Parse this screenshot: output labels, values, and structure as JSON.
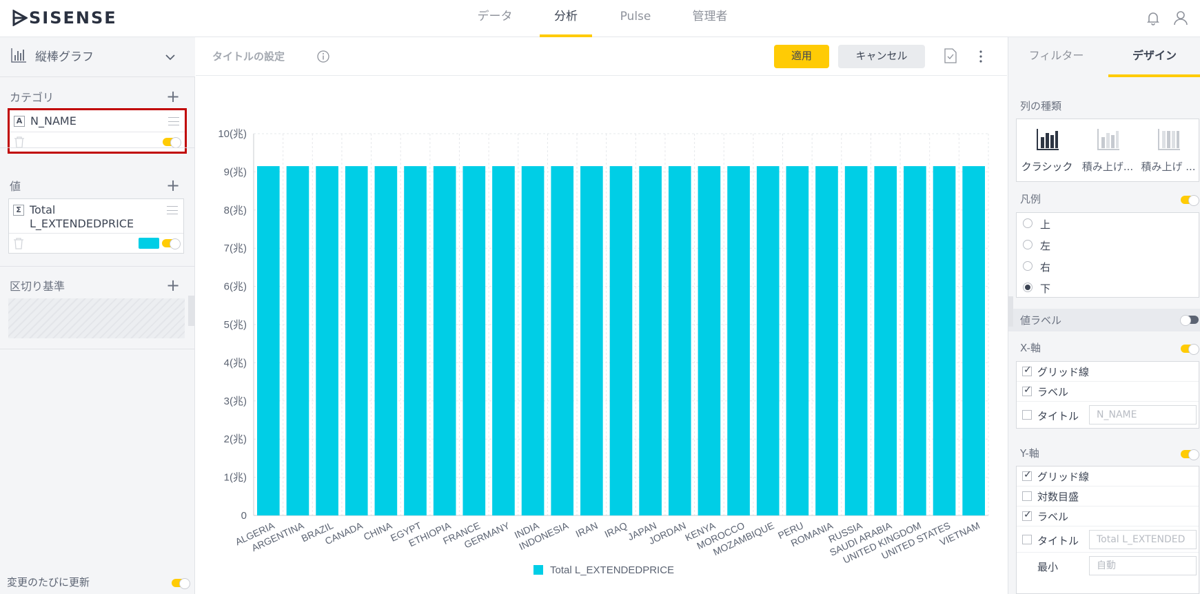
{
  "app": {
    "logo": "SISENSE"
  },
  "nav": {
    "items": [
      "データ",
      "分析",
      "Pulse",
      "管理者"
    ],
    "active": "分析"
  },
  "left": {
    "chart_type": "縦棒グラフ",
    "category_label": "カテゴリ",
    "category_field": "N_NAME",
    "value_label": "値",
    "value_field": "Total L_EXTENDEDPRICE",
    "breakby_label": "区切り基準",
    "update_label": "変更のたびに更新",
    "field_type_a": "A",
    "field_type_sigma": "Σ"
  },
  "center": {
    "title_placeholder": "タイトルの設定",
    "apply_label": "適用",
    "cancel_label": "キャンセル"
  },
  "right": {
    "tabs": [
      "フィルター",
      "デザイン"
    ],
    "active_tab": "デザイン",
    "column_type_label": "列の種類",
    "column_types": [
      "クラシック",
      "積み上げ...",
      "積み上げ ..."
    ],
    "legend_label": "凡例",
    "legend_options": [
      "上",
      "左",
      "右",
      "下"
    ],
    "legend_selected": "下",
    "value_label_label": "値ラベル",
    "xaxis_label": "X-軸",
    "xaxis_options": [
      "グリッド線",
      "ラベル",
      "タイトル"
    ],
    "xaxis_title_placeholder": "N_NAME",
    "yaxis_label": "Y-軸",
    "yaxis_options": [
      "グリッド線",
      "対数目盛",
      "ラベル",
      "タイトル",
      "最小"
    ],
    "yaxis_title_placeholder": "Total L_EXTENDED",
    "yaxis_min_placeholder": "自動",
    "accent_color": "#ffcb05"
  },
  "chart_data": {
    "type": "bar",
    "categories": [
      "ALGERIA",
      "ARGENTINA",
      "BRAZIL",
      "CANADA",
      "CHINA",
      "EGYPT",
      "ETHIOPIA",
      "FRANCE",
      "GERMANY",
      "INDIA",
      "INDONESIA",
      "IRAN",
      "IRAQ",
      "JAPAN",
      "JORDAN",
      "KENYA",
      "MOROCCO",
      "MOZAMBIQUE",
      "PERU",
      "ROMANIA",
      "RUSSIA",
      "SAUDI ARABIA",
      "UNITED KINGDOM",
      "UNITED STATES",
      "VIETNAM"
    ],
    "series": [
      {
        "name": "Total L_EXTENDEDPRICE",
        "color": "#00cee6",
        "values": [
          9.15,
          9.15,
          9.15,
          9.15,
          9.15,
          9.15,
          9.15,
          9.15,
          9.15,
          9.15,
          9.15,
          9.15,
          9.15,
          9.15,
          9.15,
          9.15,
          9.15,
          9.15,
          9.15,
          9.15,
          9.15,
          9.15,
          9.15,
          9.15,
          9.15
        ]
      }
    ],
    "yticks": [
      "0",
      "1(兆)",
      "2(兆)",
      "3(兆)",
      "4(兆)",
      "5(兆)",
      "6(兆)",
      "7(兆)",
      "8(兆)",
      "9(兆)",
      "10(兆)"
    ],
    "ylim": [
      0,
      10
    ],
    "grid": true,
    "legend": "bottom"
  }
}
